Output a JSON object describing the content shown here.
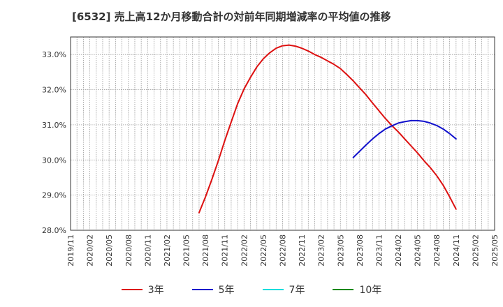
{
  "chart_data": {
    "type": "line",
    "title": "[6532]  売上高12か月移動合計の対前年同期増減率の平均値の推移",
    "xlabel": "",
    "ylabel": "",
    "ylim": [
      28.0,
      33.5
    ],
    "xlim": [
      "2019/11",
      "2025/05"
    ],
    "grid": true,
    "legend_position": "bottom",
    "y_ticks": [
      "28.0%",
      "29.0%",
      "30.0%",
      "31.0%",
      "32.0%",
      "33.0%"
    ],
    "x_ticks": [
      "2019/11",
      "2020/02",
      "2020/05",
      "2020/08",
      "2020/11",
      "2021/02",
      "2021/05",
      "2021/08",
      "2021/11",
      "2022/02",
      "2022/05",
      "2022/08",
      "2022/11",
      "2023/02",
      "2023/05",
      "2023/08",
      "2023/11",
      "2024/02",
      "2024/05",
      "2024/08",
      "2024/11",
      "2025/02",
      "2025/05"
    ],
    "series": [
      {
        "name": "3年",
        "color": "#dd1111",
        "x": [
          "2021/07",
          "2021/08",
          "2021/09",
          "2021/10",
          "2021/11",
          "2021/12",
          "2022/01",
          "2022/02",
          "2022/03",
          "2022/04",
          "2022/05",
          "2022/06",
          "2022/07",
          "2022/08",
          "2022/09",
          "2022/10",
          "2022/11",
          "2022/12",
          "2023/01",
          "2023/02",
          "2023/03",
          "2023/04",
          "2023/05",
          "2023/06",
          "2023/07",
          "2023/08",
          "2023/09",
          "2023/10",
          "2023/11",
          "2023/12",
          "2024/01",
          "2024/02",
          "2024/03",
          "2024/04",
          "2024/05",
          "2024/06",
          "2024/07",
          "2024/08",
          "2024/09",
          "2024/10",
          "2024/11"
        ],
        "values": [
          28.5,
          28.95,
          29.45,
          29.98,
          30.55,
          31.08,
          31.6,
          32.02,
          32.35,
          32.65,
          32.88,
          33.05,
          33.18,
          33.25,
          33.27,
          33.24,
          33.18,
          33.1,
          33.0,
          32.92,
          32.82,
          32.72,
          32.6,
          32.43,
          32.25,
          32.05,
          31.85,
          31.62,
          31.4,
          31.18,
          30.98,
          30.8,
          30.6,
          30.4,
          30.2,
          29.98,
          29.78,
          29.55,
          29.28,
          28.95,
          28.6
        ]
      },
      {
        "name": "5年",
        "color": "#1111cc",
        "x": [
          "2023/07",
          "2023/08",
          "2023/09",
          "2023/10",
          "2023/11",
          "2023/12",
          "2024/01",
          "2024/02",
          "2024/03",
          "2024/04",
          "2024/05",
          "2024/06",
          "2024/07",
          "2024/08",
          "2024/09",
          "2024/10",
          "2024/11"
        ],
        "values": [
          30.07,
          30.25,
          30.43,
          30.6,
          30.75,
          30.88,
          30.97,
          31.05,
          31.09,
          31.12,
          31.12,
          31.1,
          31.05,
          30.98,
          30.88,
          30.75,
          30.6
        ]
      },
      {
        "name": "7年",
        "color": "#11dddd",
        "x": [],
        "values": []
      },
      {
        "name": "10年",
        "color": "#118811",
        "x": [],
        "values": []
      }
    ]
  }
}
